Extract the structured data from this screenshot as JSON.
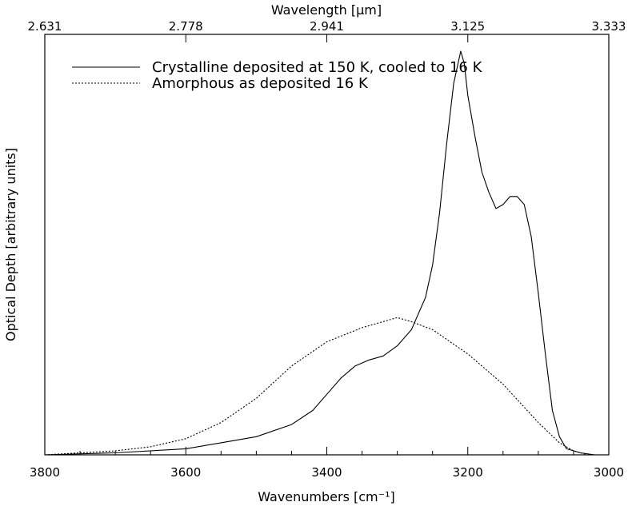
{
  "chart_data": {
    "type": "line",
    "xlabel": "Wavenumbers [cm⁻¹]",
    "ylabel": "Optical Depth [arbitrary  units]",
    "top_axis_label": "Wavelength [μm]",
    "xlim": [
      3800,
      3000
    ],
    "ylim": [
      0,
      1
    ],
    "x_ticks": [
      3800,
      3600,
      3400,
      3200,
      3000
    ],
    "x_tick_labels": [
      "3800",
      "3600",
      "3400",
      "3200",
      "3000"
    ],
    "top_ticks": [
      {
        "at": 3800,
        "label": "2.631"
      },
      {
        "at": 3600,
        "label": "2.778"
      },
      {
        "at": 3400,
        "label": "2.941"
      },
      {
        "at": 3200,
        "label": "3.125"
      },
      {
        "at": 3000,
        "label": "3.333"
      }
    ],
    "legend_position": "top-right",
    "series": [
      {
        "name": "Crystalline deposited at 150 K, cooled to 16 K",
        "style": "solid",
        "x": [
          3800,
          3700,
          3600,
          3550,
          3500,
          3450,
          3420,
          3400,
          3380,
          3360,
          3340,
          3320,
          3300,
          3280,
          3260,
          3250,
          3240,
          3230,
          3220,
          3210,
          3205,
          3200,
          3190,
          3180,
          3170,
          3160,
          3150,
          3140,
          3130,
          3120,
          3110,
          3100,
          3090,
          3080,
          3070,
          3060,
          3040,
          3020,
          3000
        ],
        "y": [
          0.0,
          0.005,
          0.015,
          0.03,
          0.045,
          0.075,
          0.11,
          0.15,
          0.19,
          0.22,
          0.235,
          0.245,
          0.27,
          0.31,
          0.39,
          0.47,
          0.6,
          0.77,
          0.92,
          1.0,
          0.97,
          0.89,
          0.79,
          0.7,
          0.65,
          0.61,
          0.62,
          0.64,
          0.64,
          0.62,
          0.54,
          0.4,
          0.25,
          0.11,
          0.045,
          0.015,
          0.005,
          0.0,
          0.0
        ]
      },
      {
        "name": "Amorphous as deposited 16 K",
        "style": "dotted",
        "x": [
          3800,
          3700,
          3650,
          3600,
          3550,
          3500,
          3450,
          3400,
          3350,
          3300,
          3280,
          3250,
          3200,
          3150,
          3100,
          3070,
          3050,
          3030,
          3000
        ],
        "y": [
          0.0,
          0.01,
          0.02,
          0.04,
          0.08,
          0.14,
          0.22,
          0.28,
          0.315,
          0.34,
          0.33,
          0.31,
          0.25,
          0.175,
          0.08,
          0.03,
          0.01,
          0.0,
          0.0
        ]
      }
    ]
  }
}
